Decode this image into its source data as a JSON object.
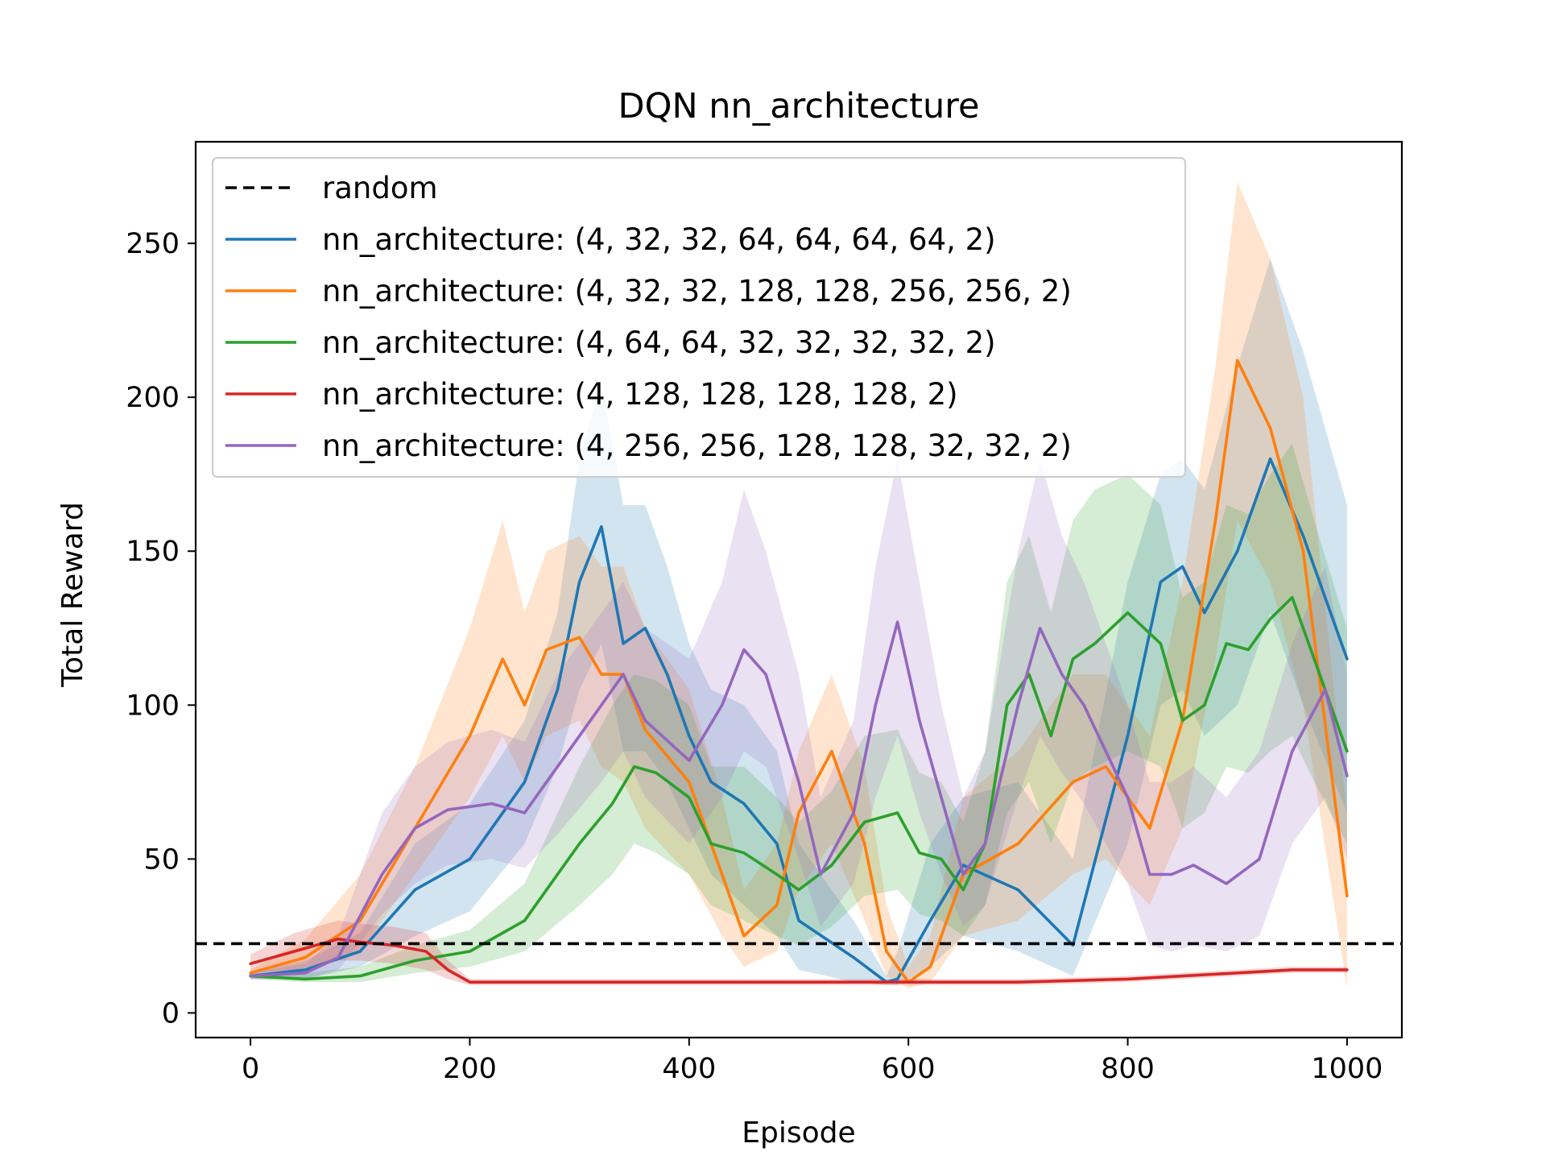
{
  "chart_data": {
    "type": "line",
    "title": "DQN nn_architecture",
    "xlabel": "Episode",
    "ylabel": "Total Reward",
    "xlim": [
      -50,
      1050
    ],
    "ylim": [
      -8,
      283
    ],
    "xticks": [
      0,
      200,
      400,
      600,
      800,
      1000
    ],
    "yticks": [
      0,
      50,
      100,
      150,
      200,
      250
    ],
    "xtick_labels": [
      "0",
      "200",
      "400",
      "600",
      "800",
      "1000"
    ],
    "ytick_labels": [
      "0",
      "50",
      "100",
      "150",
      "200",
      "250"
    ],
    "grid": false,
    "legend_position": "upper-left",
    "random_baseline": {
      "name": "random",
      "value": 22.5,
      "color": "#000000",
      "style": "dashed"
    },
    "series": [
      {
        "name": "nn_architecture: (4, 32, 32, 64, 64, 64, 64, 2)",
        "color": "#1f77b4",
        "x": [
          0,
          50,
          100,
          150,
          200,
          250,
          280,
          300,
          320,
          340,
          360,
          380,
          400,
          420,
          450,
          480,
          500,
          550,
          580,
          590,
          620,
          650,
          700,
          750,
          800,
          830,
          850,
          870,
          900,
          930,
          960,
          1000
        ],
        "y": [
          12,
          14,
          20,
          40,
          50,
          75,
          105,
          140,
          158,
          120,
          125,
          110,
          90,
          75,
          68,
          55,
          30,
          18,
          10,
          11,
          30,
          48,
          40,
          22,
          90,
          140,
          145,
          130,
          150,
          180,
          155,
          115
        ],
        "lower": [
          11,
          11,
          15,
          25,
          33,
          55,
          80,
          105,
          120,
          85,
          85,
          75,
          60,
          45,
          35,
          25,
          14,
          10,
          9,
          9,
          15,
          25,
          20,
          12,
          55,
          100,
          105,
          90,
          100,
          130,
          100,
          65
        ],
        "upper": [
          13,
          17,
          26,
          55,
          68,
          95,
          130,
          180,
          205,
          165,
          165,
          145,
          120,
          105,
          100,
          85,
          55,
          30,
          12,
          20,
          55,
          70,
          75,
          50,
          140,
          175,
          180,
          170,
          210,
          245,
          215,
          165
        ]
      },
      {
        "name": "nn_architecture: (4, 32, 32, 128, 128, 256, 256, 2)",
        "color": "#ff7f0e",
        "x": [
          0,
          50,
          100,
          150,
          200,
          230,
          250,
          270,
          300,
          320,
          340,
          360,
          400,
          430,
          450,
          480,
          500,
          530,
          560,
          580,
          600,
          620,
          650,
          700,
          750,
          780,
          820,
          850,
          880,
          900,
          930,
          960,
          1000
        ],
        "y": [
          13,
          18,
          30,
          60,
          90,
          115,
          100,
          118,
          122,
          110,
          110,
          92,
          75,
          45,
          25,
          35,
          65,
          85,
          55,
          20,
          10,
          15,
          45,
          55,
          75,
          80,
          60,
          95,
          160,
          212,
          190,
          150,
          38
        ],
        "lower": [
          12,
          13,
          20,
          45,
          70,
          90,
          75,
          90,
          95,
          80,
          75,
          60,
          45,
          25,
          15,
          20,
          40,
          55,
          30,
          12,
          8,
          10,
          25,
          30,
          45,
          50,
          35,
          60,
          115,
          160,
          140,
          100,
          8
        ],
        "upper": [
          14,
          24,
          45,
          80,
          125,
          160,
          130,
          150,
          155,
          145,
          145,
          125,
          105,
          70,
          40,
          55,
          85,
          110,
          80,
          35,
          15,
          25,
          70,
          85,
          110,
          110,
          90,
          140,
          210,
          270,
          245,
          200,
          65
        ]
      },
      {
        "name": "nn_architecture: (4, 64, 64, 32, 32, 32, 32, 2)",
        "color": "#2ca02c",
        "x": [
          0,
          50,
          100,
          150,
          200,
          250,
          300,
          330,
          350,
          370,
          400,
          420,
          450,
          480,
          500,
          530,
          560,
          590,
          610,
          630,
          650,
          670,
          690,
          710,
          730,
          750,
          770,
          800,
          830,
          850,
          870,
          890,
          910,
          930,
          950,
          970,
          1000
        ],
        "y": [
          12,
          11,
          12,
          17,
          20,
          30,
          55,
          68,
          80,
          78,
          70,
          55,
          52,
          45,
          40,
          48,
          62,
          65,
          52,
          50,
          40,
          55,
          100,
          110,
          90,
          115,
          120,
          130,
          120,
          95,
          100,
          120,
          118,
          128,
          135,
          115,
          85
        ],
        "lower": [
          11,
          10,
          10,
          13,
          15,
          20,
          35,
          45,
          55,
          52,
          45,
          35,
          30,
          25,
          22,
          28,
          38,
          40,
          32,
          30,
          25,
          35,
          65,
          75,
          55,
          75,
          80,
          85,
          80,
          60,
          65,
          80,
          78,
          85,
          90,
          75,
          55
        ],
        "upper": [
          13,
          13,
          15,
          22,
          27,
          42,
          80,
          100,
          110,
          108,
          100,
          80,
          80,
          70,
          62,
          72,
          90,
          92,
          78,
          75,
          62,
          85,
          140,
          155,
          130,
          160,
          170,
          175,
          165,
          135,
          140,
          165,
          162,
          175,
          185,
          160,
          125
        ]
      },
      {
        "name": "nn_architecture: (4, 128, 128, 128, 128, 2)",
        "color": "#d62728",
        "x": [
          0,
          40,
          80,
          100,
          130,
          160,
          180,
          200,
          250,
          300,
          400,
          500,
          600,
          700,
          800,
          850,
          900,
          950,
          1000
        ],
        "y": [
          16,
          20,
          24,
          23,
          22,
          20,
          14,
          10,
          10,
          10,
          10,
          10,
          10,
          10,
          11,
          12,
          13,
          14,
          14
        ],
        "lower": [
          13,
          14,
          17,
          17,
          16,
          14,
          11,
          9,
          9,
          9,
          9,
          9,
          9,
          9,
          10,
          11,
          12,
          13,
          13
        ],
        "upper": [
          19,
          26,
          30,
          29,
          28,
          26,
          17,
          11,
          11,
          11,
          11,
          11,
          11,
          11,
          12,
          13,
          14,
          15,
          15
        ]
      },
      {
        "name": "nn_architecture: (4, 256, 256, 128, 128, 32, 32, 2)",
        "color": "#9467bd",
        "x": [
          0,
          50,
          80,
          120,
          150,
          180,
          220,
          250,
          280,
          320,
          340,
          360,
          400,
          430,
          450,
          470,
          500,
          520,
          550,
          570,
          590,
          610,
          630,
          650,
          670,
          700,
          720,
          740,
          760,
          800,
          820,
          840,
          860,
          890,
          920,
          950,
          980,
          1000
        ],
        "y": [
          12,
          13,
          18,
          45,
          60,
          66,
          68,
          65,
          80,
          100,
          110,
          95,
          82,
          100,
          118,
          110,
          75,
          45,
          65,
          100,
          127,
          95,
          70,
          45,
          55,
          100,
          125,
          110,
          100,
          70,
          45,
          45,
          48,
          42,
          50,
          85,
          105,
          77
        ],
        "lower": [
          11,
          11,
          14,
          32,
          42,
          48,
          50,
          47,
          58,
          75,
          85,
          70,
          55,
          70,
          85,
          80,
          50,
          28,
          42,
          70,
          90,
          65,
          45,
          28,
          35,
          70,
          90,
          78,
          68,
          42,
          22,
          20,
          22,
          20,
          25,
          55,
          70,
          50
        ],
        "upper": [
          13,
          16,
          25,
          65,
          80,
          88,
          92,
          88,
          110,
          130,
          140,
          125,
          115,
          140,
          170,
          150,
          110,
          70,
          95,
          145,
          180,
          140,
          100,
          70,
          85,
          150,
          180,
          155,
          140,
          100,
          75,
          75,
          80,
          70,
          85,
          120,
          145,
          110
        ]
      }
    ]
  }
}
